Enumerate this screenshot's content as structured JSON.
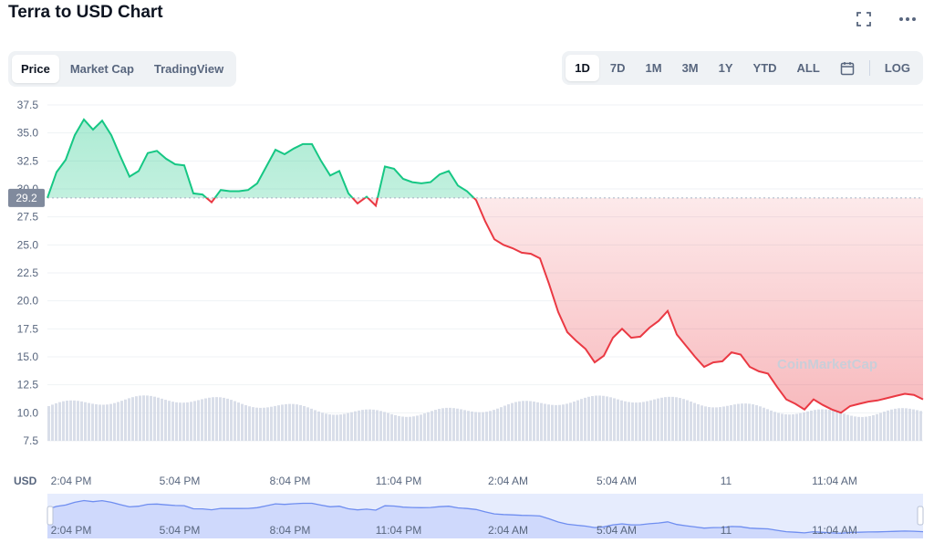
{
  "header": {
    "title": "Terra to USD Chart"
  },
  "icons": {
    "fullscreen": "fullscreen-icon",
    "more": "more-icon",
    "calendar": "calendar-icon"
  },
  "view_tabs": [
    {
      "label": "Price",
      "active": true
    },
    {
      "label": "Market Cap",
      "active": false
    },
    {
      "label": "TradingView",
      "active": false
    }
  ],
  "range_tabs": [
    {
      "label": "1D",
      "active": true
    },
    {
      "label": "7D",
      "active": false
    },
    {
      "label": "1M",
      "active": false
    },
    {
      "label": "3M",
      "active": false
    },
    {
      "label": "1Y",
      "active": false
    },
    {
      "label": "YTD",
      "active": false
    },
    {
      "label": "ALL",
      "active": false
    }
  ],
  "log_label": "LOG",
  "watermark": "CoinMarketCap",
  "colors": {
    "up": "#16c784",
    "down": "#ea3943",
    "grid": "#eff2f5",
    "volume": "#cfd6e4",
    "navigator": "#6f8ef0"
  },
  "chart_data": {
    "type": "line",
    "title": "Terra to USD Chart",
    "ylabel": "USD",
    "ylim": [
      7.5,
      37.5
    ],
    "yticks": [
      "7.5",
      "10.0",
      "12.5",
      "15.0",
      "17.5",
      "20.0",
      "22.5",
      "25.0",
      "27.5",
      "30.0",
      "32.5",
      "35.0",
      "37.5"
    ],
    "xticks": [
      "2:04 PM",
      "5:04 PM",
      "8:04 PM",
      "11:04 PM",
      "2:04 AM",
      "5:04 AM",
      "11",
      "11:04 AM"
    ],
    "open_price": 29.2,
    "open_price_label": "29.2",
    "series": [
      {
        "x": [
          0,
          0.25,
          0.5,
          0.75,
          1,
          1.25,
          1.5,
          1.75,
          2,
          2.25,
          2.5,
          2.75,
          3,
          3.25,
          3.5,
          3.75,
          4,
          4.25,
          4.5,
          4.75,
          5,
          5.25,
          5.5,
          5.75,
          6,
          6.25,
          6.5,
          6.75,
          7,
          7.25,
          7.5,
          7.75,
          8,
          8.25,
          8.5,
          8.75,
          9,
          9.25,
          9.5,
          9.75,
          10,
          10.25,
          10.5,
          10.75,
          11,
          11.25,
          11.5,
          11.75,
          12,
          12.25,
          12.5,
          12.75,
          13,
          13.25,
          13.5,
          13.75,
          14,
          14.25,
          14.5,
          14.75,
          15,
          15.25,
          15.5,
          15.75,
          16,
          16.25,
          16.5,
          16.75,
          17,
          17.25,
          17.5,
          17.75,
          18,
          18.25,
          18.5,
          18.75,
          19,
          19.25,
          19.5,
          19.75,
          20,
          20.25,
          20.5,
          20.75,
          21,
          21.25,
          21.5,
          21.75,
          22,
          22.25,
          22.5,
          22.75,
          23,
          23.25,
          23.5,
          23.75,
          24
        ],
        "values": [
          29.2,
          31.5,
          32.6,
          34.8,
          36.2,
          35.3,
          36.1,
          34.8,
          32.9,
          31.1,
          31.6,
          33.2,
          33.4,
          32.7,
          32.2,
          32.1,
          29.6,
          29.5,
          28.8,
          29.9,
          29.8,
          29.8,
          29.9,
          30.5,
          32.0,
          33.5,
          33.1,
          33.6,
          34.0,
          34.0,
          32.5,
          31.2,
          31.6,
          29.6,
          28.7,
          29.3,
          28.5,
          32.0,
          31.8,
          30.9,
          30.6,
          30.5,
          30.6,
          31.3,
          31.6,
          30.3,
          29.8,
          29.0,
          27.1,
          25.5,
          25.0,
          24.7,
          24.3,
          24.2,
          23.8,
          21.5,
          19.0,
          17.2,
          16.4,
          15.7,
          14.5,
          15.1,
          16.7,
          17.5,
          16.7,
          16.8,
          17.6,
          18.2,
          19.1,
          17.0,
          16.0,
          15.0,
          14.1,
          14.5,
          14.6,
          15.4,
          15.2,
          14.1,
          13.7,
          13.5,
          12.3,
          11.2,
          10.8,
          10.3,
          11.2,
          10.7,
          10.3,
          10.0,
          10.6,
          10.8,
          11.0,
          11.1,
          11.3,
          11.5,
          11.7,
          11.6,
          11.2
        ]
      }
    ]
  }
}
